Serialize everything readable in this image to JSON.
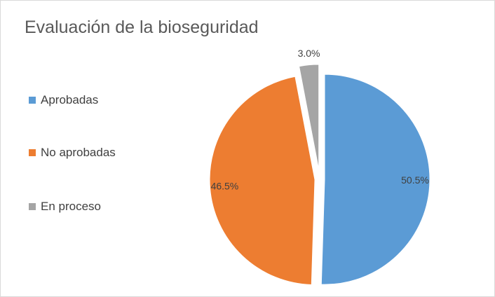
{
  "chart_data": {
    "type": "pie",
    "title": "Evaluación de la bioseguridad",
    "categories": [
      "Aprobadas",
      "No aprobadas",
      "En proceso"
    ],
    "values": [
      50.5,
      46.5,
      3.0
    ],
    "data_labels": [
      "50.5%",
      "46.5%",
      "3.0%"
    ],
    "colors": [
      "#5b9bd5",
      "#ed7d31",
      "#a5a5a5"
    ],
    "legend_position": "left",
    "exploded": true
  }
}
